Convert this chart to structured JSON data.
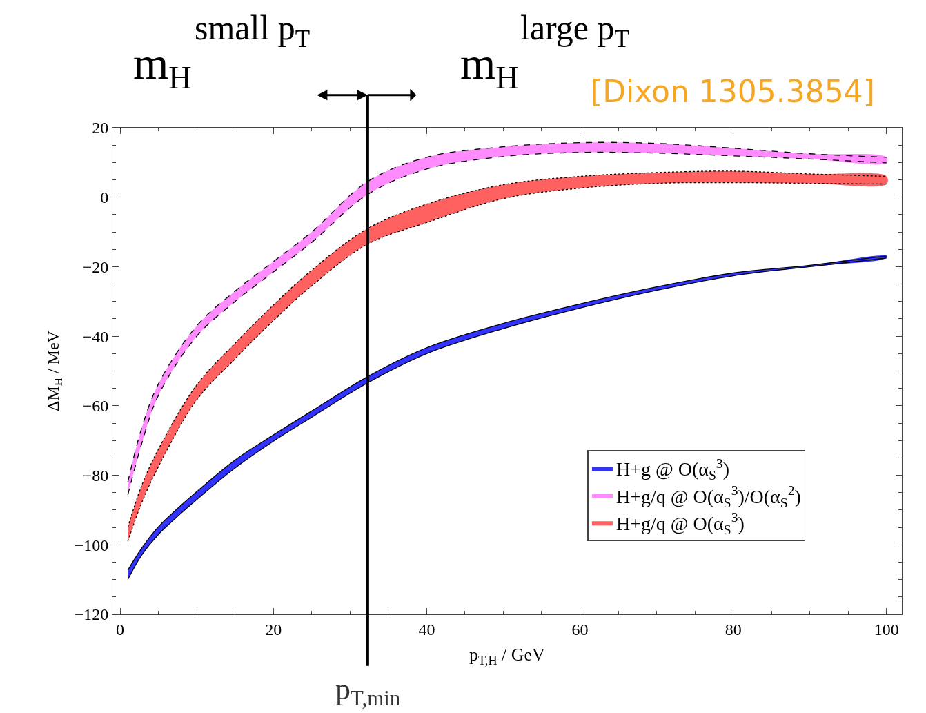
{
  "chart_data": {
    "type": "line",
    "xlabel": "p$_{T,H}$ / GeV",
    "ylabel": "ΔM$_{H}$ / MeV",
    "x": [
      1,
      2.8,
      5,
      10,
      15,
      20,
      25,
      32.3,
      40,
      50,
      60,
      70,
      80,
      90,
      100
    ],
    "series": [
      {
        "name": "H+g @ O(α$_{S}$$^{3}$)",
        "color": "#3333ff",
        "values": [
          null,
          null,
          null,
          null,
          null,
          null,
          null,
          null,
          null,
          null,
          null,
          null,
          null,
          null,
          null
        ],
        "upper": [
          -107.3,
          -101,
          -94.8,
          -84.7,
          -75.6,
          -68.4,
          -61.5,
          -51.6,
          -43.3,
          -36.3,
          -30.7,
          -25.8,
          -21.8,
          -19.6,
          -16.9
        ],
        "lower": [
          -110,
          -103,
          -97,
          -87,
          -77.9,
          -70.2,
          -63.3,
          -53.4,
          -45,
          -37.8,
          -31.9,
          -26.8,
          -22.6,
          -20,
          -17.5
        ]
      },
      {
        "name": "H+g/q @ O(α$_{S}$$^{3}$)/O(α$_{S}$$^{2}$)",
        "color": "#ff8cff",
        "values": [
          null,
          null,
          null,
          null,
          null,
          null,
          null,
          null,
          null,
          null,
          null,
          null,
          null,
          null,
          null
        ],
        "upper": [
          -82,
          -66.5,
          -53.7,
          -37,
          -27,
          -18.5,
          -10,
          4.5,
          11.5,
          14.5,
          15.7,
          15.5,
          14.1,
          12.5,
          11.5
        ],
        "lower": [
          -85.7,
          -71,
          -57,
          -40,
          -30,
          -21.5,
          -13,
          0.8,
          8.1,
          11.7,
          12.9,
          12.7,
          11.9,
          11,
          9.9
        ]
      },
      {
        "name": "H+g/q @ O(α$_{S}$$^{3}$)",
        "color": "#ff6060",
        "values": [
          null,
          null,
          null,
          null,
          null,
          null,
          null,
          null,
          null,
          null,
          null,
          null,
          null,
          null,
          null
        ],
        "upper": [
          -95,
          -83,
          -72.5,
          -54,
          -42,
          -31,
          -21,
          -9,
          -2,
          3.6,
          6,
          7.1,
          7.5,
          6.7,
          6
        ],
        "lower": [
          -99,
          -88,
          -77.5,
          -58.3,
          -46.5,
          -35.5,
          -25.5,
          -13.5,
          -7.3,
          -0.4,
          2.6,
          4,
          4.2,
          4,
          3.8
        ]
      },
      {
        "color": "#000000",
        "line_style": "solid",
        "values": [
          -107.3,
          -101,
          -94.8,
          -84.7,
          -75.6,
          -68.4,
          -61.5,
          -51.6,
          -43.3,
          -36.3,
          -30.7,
          -25.8,
          -21.8,
          -19.6,
          -16.9
        ]
      },
      {
        "color": "#000000",
        "line_style": "solid",
        "values": [
          -110,
          -103,
          -97,
          -87,
          -77.9,
          -70.2,
          -63.3,
          -53.4,
          -45,
          -37.8,
          -31.9,
          -26.8,
          -22.6,
          -20,
          -17.5
        ]
      },
      {
        "color": "#000000",
        "line_style": "dashed",
        "values": [
          -82,
          -66.5,
          -53.7,
          -37,
          -27,
          -18.5,
          -10,
          4.5,
          11.5,
          14.5,
          15.7,
          15.5,
          14.1,
          12.5,
          11.5
        ]
      },
      {
        "color": "#000000",
        "line_style": "dashed",
        "values": [
          -85.7,
          -71,
          -57,
          -40,
          -30,
          -21.5,
          -13,
          0.8,
          8.1,
          11.7,
          12.9,
          12.7,
          11.9,
          11,
          9.9
        ]
      },
      {
        "color": "#000000",
        "line_style": "dotted",
        "values": [
          -95,
          -83,
          -72.5,
          -54,
          -42,
          -31,
          -21,
          -9,
          -2,
          3.6,
          6,
          7.1,
          7.5,
          6.7,
          6
        ]
      },
      {
        "color": "#000000",
        "line_style": "dotted",
        "values": [
          -99,
          -88,
          -77.5,
          -58.3,
          -46.5,
          -35.5,
          -25.5,
          -13.5,
          -7.3,
          -0.4,
          2.6,
          4,
          4.2,
          4,
          3.8
        ]
      }
    ],
    "xlim": [
      -1,
      102
    ],
    "xticks": [
      0,
      20,
      40,
      60,
      80,
      100
    ],
    "ylim": [
      -120,
      20
    ],
    "yticks": [
      -120,
      -100,
      -80,
      -60,
      -40,
      -20,
      0,
      20
    ],
    "legend": "bottom right",
    "ref_lines": [
      {
        "axis": "x",
        "value": 32.3,
        "label": "p$_{T,min}$",
        "color": "#000000",
        "line_style": "solid"
      }
    ],
    "annotations": [
      "m$_{H}$",
      "small p$_{T}$",
      "m$_{H}$",
      "large p$_{T}$",
      "[Dixon 1305.3854]"
    ]
  }
}
